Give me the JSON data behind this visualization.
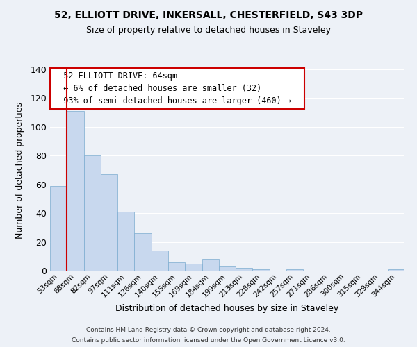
{
  "title_line1": "52, ELLIOTT DRIVE, INKERSALL, CHESTERFIELD, S43 3DP",
  "title_line2": "Size of property relative to detached houses in Staveley",
  "xlabel": "Distribution of detached houses by size in Staveley",
  "ylabel": "Number of detached properties",
  "categories": [
    "53sqm",
    "68sqm",
    "82sqm",
    "97sqm",
    "111sqm",
    "126sqm",
    "140sqm",
    "155sqm",
    "169sqm",
    "184sqm",
    "199sqm",
    "213sqm",
    "228sqm",
    "242sqm",
    "257sqm",
    "271sqm",
    "286sqm",
    "300sqm",
    "315sqm",
    "329sqm",
    "344sqm"
  ],
  "values": [
    59,
    111,
    80,
    67,
    41,
    26,
    14,
    6,
    5,
    8,
    3,
    2,
    1,
    0,
    1,
    0,
    0,
    0,
    0,
    0,
    1
  ],
  "bar_color": "#c8d8ee",
  "bar_edge_color": "#7aabcf",
  "ylim": [
    0,
    140
  ],
  "yticks": [
    0,
    20,
    40,
    60,
    80,
    100,
    120,
    140
  ],
  "annotation_title": "52 ELLIOTT DRIVE: 64sqm",
  "annotation_line1": "← 6% of detached houses are smaller (32)",
  "annotation_line2": "93% of semi-detached houses are larger (460) →",
  "annotation_box_facecolor": "#ffffff",
  "annotation_box_edgecolor": "#cc0000",
  "footer_line1": "Contains HM Land Registry data © Crown copyright and database right 2024.",
  "footer_line2": "Contains public sector information licensed under the Open Government Licence v3.0.",
  "background_color": "#edf1f7",
  "plot_background_color": "#edf1f7",
  "grid_color": "#ffffff",
  "red_line_color": "#cc0000",
  "red_line_x": 0.5
}
